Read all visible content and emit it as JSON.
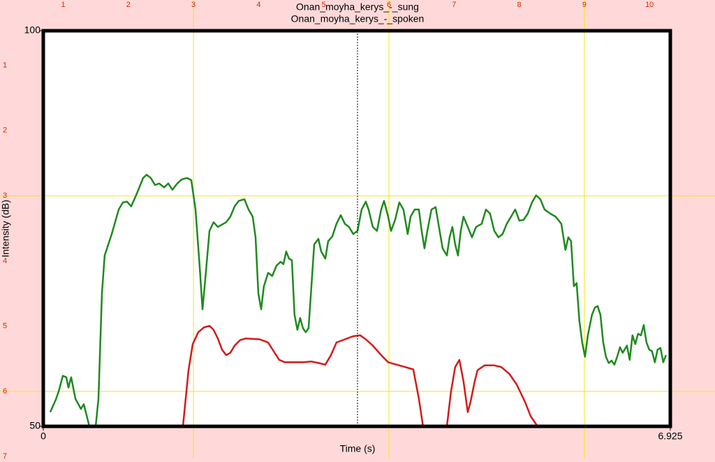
{
  "chart_data": {
    "type": "line",
    "titles": [
      "Onan_moyha_kerys_-_sung",
      "Onan_moyha_kerys_-_spoken"
    ],
    "xlabel": "Time (s)",
    "ylabel": "Intensity (dB)",
    "xlim": [
      0,
      6.925
    ],
    "xticks": [
      0,
      6.925
    ],
    "ylim": [
      50,
      100
    ],
    "yticks": [
      50,
      100
    ],
    "cursor": 3.47,
    "ruler_top": [
      1,
      2,
      3,
      4,
      5,
      6,
      7,
      8,
      9,
      10
    ],
    "ruler_left": [
      1,
      2,
      3,
      4,
      5,
      6,
      7
    ],
    "series": [
      {
        "name": "Onan_moyha_kerys_-_sung",
        "color": "#1e8a1e",
        "x": [
          0.077,
          0.139,
          0.17,
          0.216,
          0.254,
          0.278,
          0.308,
          0.355,
          0.416,
          0.447,
          0.509,
          0.54,
          0.578,
          0.609,
          0.648,
          0.678,
          0.756,
          0.833,
          0.879,
          0.925,
          0.971,
          1.025,
          1.103,
          1.141,
          1.187,
          1.234,
          1.28,
          1.334,
          1.38,
          1.426,
          1.48,
          1.527,
          1.588,
          1.635,
          1.681,
          1.727,
          1.758,
          1.789,
          1.835,
          1.881,
          1.928,
          2.02,
          2.066,
          2.113,
          2.159,
          2.221,
          2.267,
          2.313,
          2.344,
          2.375,
          2.406,
          2.436,
          2.483,
          2.529,
          2.575,
          2.621,
          2.652,
          2.683,
          2.714,
          2.745,
          2.775,
          2.806,
          2.837,
          2.868,
          2.899,
          2.93,
          2.961,
          2.992,
          3.038,
          3.069,
          3.115,
          3.146,
          3.192,
          3.238,
          3.285,
          3.331,
          3.377,
          3.423,
          3.47,
          3.516,
          3.562,
          3.593,
          3.639,
          3.685,
          3.732,
          3.763,
          3.809,
          3.84,
          3.886,
          3.932,
          3.978,
          4.025,
          4.056,
          4.102,
          4.148,
          4.179,
          4.21,
          4.241,
          4.287,
          4.333,
          4.364,
          4.41,
          4.457,
          4.487,
          4.518,
          4.549,
          4.58,
          4.611,
          4.641,
          4.688,
          4.734,
          4.78,
          4.842,
          4.888,
          4.934,
          4.981,
          5.027,
          5.073,
          5.119,
          5.166,
          5.212,
          5.258,
          5.305,
          5.351,
          5.397,
          5.443,
          5.49,
          5.536,
          5.598,
          5.659,
          5.721,
          5.767,
          5.798,
          5.829,
          5.86,
          5.89,
          5.921,
          5.952,
          5.983,
          6.014,
          6.06,
          6.091,
          6.122,
          6.153,
          6.184,
          6.214,
          6.245,
          6.276,
          6.307,
          6.338,
          6.369,
          6.399,
          6.446,
          6.476,
          6.507,
          6.538,
          6.569,
          6.6,
          6.631,
          6.662,
          6.692,
          6.723,
          6.754,
          6.785,
          6.816,
          6.847,
          6.877
        ],
        "values": [
          51.8,
          53.4,
          54.4,
          56.4,
          56.2,
          54.9,
          56.2,
          53.5,
          52.2,
          52.8,
          50.0,
          null,
          50.0,
          53.5,
          66.8,
          71.6,
          74.3,
          77.4,
          78.3,
          78.4,
          77.8,
          79.2,
          81.4,
          81.8,
          81.4,
          80.5,
          80.7,
          80.2,
          80.7,
          79.9,
          80.7,
          81.2,
          81.4,
          81.1,
          77.4,
          70.3,
          64.8,
          68.6,
          74.7,
          75.8,
          75.2,
          75.8,
          76.5,
          77.8,
          78.5,
          78.7,
          77.4,
          76.5,
          73.9,
          66.8,
          64.8,
          67.7,
          69.4,
          69.0,
          70.3,
          70.8,
          70.5,
          72.1,
          71.2,
          71.0,
          64.1,
          62.2,
          63.7,
          62.4,
          61.9,
          62.4,
          67.7,
          73.0,
          73.7,
          72.1,
          71.2,
          73.4,
          74.0,
          75.6,
          76.7,
          75.6,
          75.2,
          74.3,
          74.7,
          77.4,
          78.4,
          77.4,
          75.2,
          74.7,
          77.4,
          78.5,
          76.5,
          74.7,
          76.1,
          78.3,
          77.4,
          74.3,
          76.5,
          77.4,
          77.4,
          74.7,
          72.5,
          74.7,
          77.4,
          77.7,
          75.6,
          72.5,
          71.6,
          73.9,
          75.2,
          73.0,
          71.6,
          74.7,
          76.5,
          75.2,
          73.9,
          75.2,
          75.6,
          77.4,
          76.9,
          74.7,
          73.9,
          74.3,
          75.6,
          76.5,
          77.4,
          76.0,
          76.1,
          76.9,
          78.3,
          79.2,
          78.7,
          77.4,
          76.9,
          76.5,
          75.6,
          72.3,
          73.9,
          73.4,
          67.7,
          68.1,
          63.3,
          60.6,
          58.8,
          61.5,
          64.1,
          65.0,
          65.2,
          64.1,
          60.6,
          58.8,
          58.0,
          58.3,
          57.8,
          58.8,
          60.0,
          59.3,
          60.2,
          58.4,
          61.5,
          60.4,
          61.7,
          61.5,
          62.8,
          60.6,
          59.7,
          59.5,
          58.1,
          59.7,
          59.9,
          58.1,
          59.0
        ]
      },
      {
        "name": "Onan_moyha_kerys_-_spoken",
        "color": "#d41a1a",
        "x": [
          1.542,
          1.604,
          1.65,
          1.712,
          1.773,
          1.835,
          1.881,
          1.928,
          1.974,
          2.02,
          2.066,
          2.113,
          2.174,
          2.236,
          2.39,
          2.483,
          2.544,
          2.606,
          2.668,
          2.868,
          2.961,
          3.038,
          3.115,
          3.177,
          3.238,
          3.331,
          3.423,
          3.5,
          3.562,
          3.639,
          3.732,
          3.809,
          3.901,
          3.994,
          4.086,
          4.148,
          4.194,
          4.3,
          4.457,
          4.503,
          4.549,
          4.595,
          4.641,
          4.688,
          4.719,
          4.765,
          4.796,
          4.873,
          4.981,
          5.058,
          5.15,
          5.228,
          5.32,
          5.382,
          5.459
        ],
        "values": [
          50.0,
          57.1,
          60.4,
          61.9,
          62.5,
          62.7,
          62.2,
          61.1,
          59.7,
          59.0,
          59.3,
          60.2,
          60.9,
          61.1,
          61.0,
          60.6,
          59.5,
          58.4,
          58.1,
          58.1,
          58.2,
          58.0,
          57.8,
          59.0,
          60.6,
          61.0,
          61.4,
          61.5,
          61.0,
          60.2,
          59.0,
          58.1,
          57.8,
          57.5,
          57.2,
          53.5,
          50.0,
          null,
          50.0,
          54.4,
          57.5,
          58.4,
          55.7,
          51.8,
          53.1,
          55.7,
          57.1,
          57.7,
          57.7,
          57.5,
          56.6,
          55.3,
          53.1,
          51.3,
          50.0
        ]
      }
    ]
  }
}
